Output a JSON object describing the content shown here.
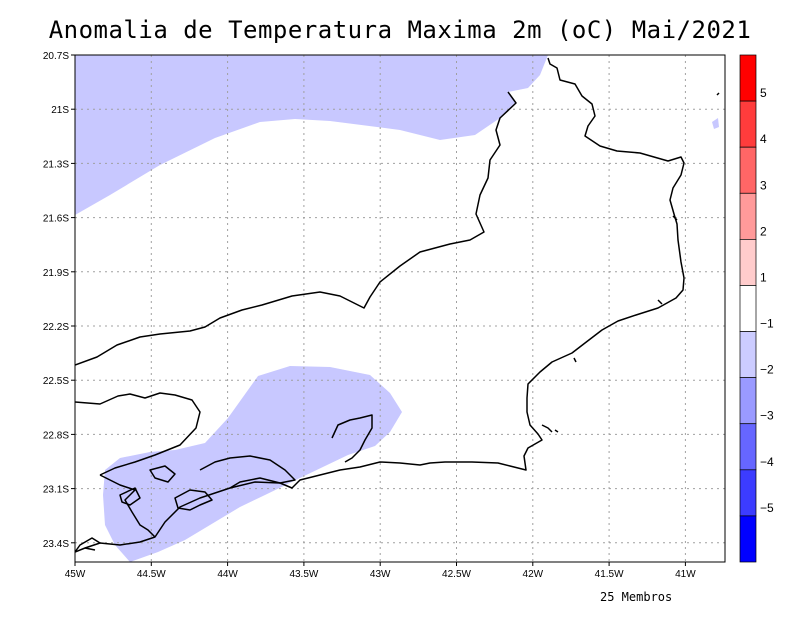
{
  "title": "Anomalia de Temperatura Maxima 2m (oC) Mai/2021",
  "footer": "25 Membros",
  "map": {
    "lat_labels": [
      "20.7S",
      "21S",
      "21.3S",
      "21.6S",
      "21.9S",
      "22.2S",
      "22.5S",
      "22.8S",
      "23.1S",
      "23.4S"
    ],
    "lon_labels": [
      "45W",
      "44.5W",
      "44W",
      "43.5W",
      "43W",
      "42.5W",
      "42W",
      "41.5W",
      "41W"
    ],
    "anomaly_fill_color": "#c8c8ff",
    "coast_color": "#000000",
    "grid_color": "#a0a0a0"
  },
  "colorbar": {
    "labels": [
      "5",
      "4",
      "3",
      "2",
      "1",
      "−1",
      "−2",
      "−3",
      "−4",
      "−5"
    ],
    "colors": [
      "#ff0000",
      "#ff3c3c",
      "#ff6666",
      "#ff9a9a",
      "#ffcccc",
      "#ffffff",
      "#ccccff",
      "#9a9aff",
      "#6666ff",
      "#3c3cff",
      "#0000ff"
    ]
  }
}
